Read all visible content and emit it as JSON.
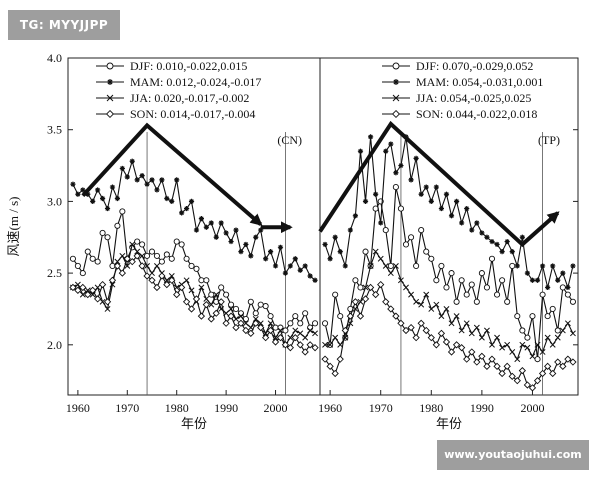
{
  "watermark_tl": "TG: MYYJJPP",
  "watermark_br": "www.youtaojuhui.com",
  "chart_data": [
    {
      "type": "line",
      "panel_label": "(CN)",
      "xlabel": "年份",
      "ylabel": "风速(m / s)",
      "xlim": [
        1958,
        2009
      ],
      "ylim": [
        1.65,
        4.0
      ],
      "xticks": [
        1960,
        1970,
        1980,
        1990,
        2000
      ],
      "yticks": [
        "4.0",
        "3.5",
        "3.0",
        "2.5",
        "2.0"
      ],
      "vlines": [
        1974,
        2002
      ],
      "legend_position": "top-right",
      "trend_arrows": [
        [
          [
            1961,
            3.04
          ],
          [
            1974,
            3.53
          ],
          [
            1997,
            2.84
          ]
        ],
        [
          [
            1997,
            2.82
          ],
          [
            2003,
            2.82
          ]
        ]
      ],
      "x": [
        1959,
        1960,
        1961,
        1962,
        1963,
        1964,
        1965,
        1966,
        1967,
        1968,
        1969,
        1970,
        1971,
        1972,
        1973,
        1974,
        1975,
        1976,
        1977,
        1978,
        1979,
        1980,
        1981,
        1982,
        1983,
        1984,
        1985,
        1986,
        1987,
        1988,
        1989,
        1990,
        1991,
        1992,
        1993,
        1994,
        1995,
        1996,
        1997,
        1998,
        1999,
        2000,
        2001,
        2002,
        2003,
        2004,
        2005,
        2006,
        2007,
        2008
      ],
      "series": [
        {
          "name": "DJF: 0.010,-0.022,0.015",
          "marker": "circle",
          "values": [
            2.6,
            2.55,
            2.5,
            2.65,
            2.6,
            2.58,
            2.78,
            2.75,
            2.55,
            2.83,
            2.93,
            2.6,
            2.68,
            2.72,
            2.7,
            2.62,
            2.65,
            2.62,
            2.58,
            2.63,
            2.6,
            2.72,
            2.7,
            2.6,
            2.55,
            2.53,
            2.45,
            2.45,
            2.35,
            2.3,
            2.4,
            2.35,
            2.28,
            2.25,
            2.22,
            2.18,
            2.3,
            2.22,
            2.28,
            2.27,
            2.2,
            2.12,
            2.12,
            2.1,
            2.15,
            2.2,
            2.15,
            2.22,
            2.12,
            2.15
          ]
        },
        {
          "name": "MAM: 0.012,-0.024,-0.017",
          "marker": "star",
          "values": [
            3.12,
            3.05,
            3.08,
            3.05,
            3.0,
            3.08,
            3.02,
            2.95,
            3.1,
            3.02,
            3.23,
            3.17,
            3.28,
            3.15,
            3.18,
            3.12,
            3.15,
            3.08,
            3.15,
            3.02,
            3.0,
            3.15,
            2.92,
            2.95,
            3.0,
            2.8,
            2.88,
            2.82,
            2.85,
            2.75,
            2.85,
            2.78,
            2.72,
            2.8,
            2.65,
            2.7,
            2.62,
            2.75,
            2.8,
            2.6,
            2.65,
            2.55,
            2.68,
            2.5,
            2.55,
            2.6,
            2.52,
            2.55,
            2.48,
            2.45
          ]
        },
        {
          "name": "JJA: 0.020,-0.017,-0.002",
          "marker": "x",
          "values": [
            2.4,
            2.42,
            2.35,
            2.38,
            2.35,
            2.4,
            2.3,
            2.25,
            2.42,
            2.58,
            2.62,
            2.55,
            2.7,
            2.65,
            2.62,
            2.55,
            2.5,
            2.55,
            2.5,
            2.45,
            2.48,
            2.4,
            2.42,
            2.45,
            2.38,
            2.3,
            2.4,
            2.32,
            2.28,
            2.35,
            2.25,
            2.22,
            2.25,
            2.18,
            2.2,
            2.15,
            2.12,
            2.18,
            2.15,
            2.08,
            2.15,
            2.05,
            2.1,
            2.0,
            2.05,
            2.1,
            2.08,
            2.05,
            2.1,
            2.08
          ]
        },
        {
          "name": "SON: 0.014,-0.017,-0.004",
          "marker": "diamond",
          "values": [
            2.4,
            2.38,
            2.4,
            2.35,
            2.38,
            2.32,
            2.42,
            2.3,
            2.45,
            2.55,
            2.5,
            2.6,
            2.58,
            2.62,
            2.55,
            2.48,
            2.45,
            2.4,
            2.48,
            2.42,
            2.45,
            2.35,
            2.4,
            2.3,
            2.25,
            2.32,
            2.2,
            2.28,
            2.18,
            2.22,
            2.3,
            2.15,
            2.2,
            2.12,
            2.15,
            2.1,
            2.08,
            2.15,
            2.12,
            2.05,
            2.1,
            2.02,
            2.05,
            2.0,
            1.98,
            2.05,
            2.0,
            1.95,
            2.0,
            1.98
          ]
        }
      ]
    },
    {
      "type": "line",
      "panel_label": "(TP)",
      "xlabel": "年份",
      "xlim": [
        1958,
        2009
      ],
      "ylim": [
        1.65,
        4.0
      ],
      "xticks": [
        1960,
        1970,
        1980,
        1990,
        2000
      ],
      "vlines": [
        1974,
        2002
      ],
      "legend_position": "top-right",
      "trend_arrows": [
        [
          [
            1958,
            2.79
          ],
          [
            1972,
            3.54
          ],
          [
            1998,
            2.7
          ],
          [
            2005,
            2.92
          ]
        ]
      ],
      "x": [
        1959,
        1960,
        1961,
        1962,
        1963,
        1964,
        1965,
        1966,
        1967,
        1968,
        1969,
        1970,
        1971,
        1972,
        1973,
        1974,
        1975,
        1976,
        1977,
        1978,
        1979,
        1980,
        1981,
        1982,
        1983,
        1984,
        1985,
        1986,
        1987,
        1988,
        1989,
        1990,
        1991,
        1992,
        1993,
        1994,
        1995,
        1996,
        1997,
        1998,
        1999,
        2000,
        2001,
        2002,
        2003,
        2004,
        2005,
        2006,
        2007,
        2008
      ],
      "series": [
        {
          "name": "DJF: 0.070,-0.029,0.052",
          "marker": "circle",
          "values": [
            2.15,
            2.0,
            2.35,
            2.2,
            2.05,
            2.25,
            2.45,
            2.4,
            2.65,
            2.55,
            2.95,
            3.0,
            2.8,
            2.55,
            3.1,
            2.95,
            2.7,
            2.75,
            2.55,
            2.8,
            2.65,
            2.6,
            2.45,
            2.55,
            2.4,
            2.5,
            2.3,
            2.45,
            2.35,
            2.42,
            2.3,
            2.5,
            2.4,
            2.6,
            2.35,
            2.45,
            2.3,
            2.55,
            2.2,
            2.1,
            2.05,
            2.2,
            1.9,
            2.35,
            2.2,
            2.25,
            2.1,
            2.4,
            2.35,
            2.3
          ]
        },
        {
          "name": "MAM: 0.054,-0.031,0.001",
          "marker": "star",
          "values": [
            2.7,
            2.6,
            2.75,
            2.65,
            2.55,
            2.8,
            2.9,
            3.35,
            3.0,
            3.45,
            3.05,
            2.85,
            3.35,
            3.4,
            3.2,
            3.25,
            3.45,
            3.15,
            3.3,
            3.05,
            3.1,
            3.0,
            3.1,
            2.95,
            3.05,
            2.9,
            3.0,
            2.85,
            2.95,
            2.8,
            2.85,
            2.78,
            2.75,
            2.72,
            2.7,
            2.65,
            2.72,
            2.65,
            2.55,
            2.75,
            2.5,
            2.45,
            2.45,
            2.55,
            2.4,
            2.55,
            2.45,
            2.5,
            2.4,
            2.55
          ]
        },
        {
          "name": "JJA: 0.054,-0.025,0.025",
          "marker": "x",
          "values": [
            2.0,
            2.0,
            2.05,
            2.0,
            2.05,
            2.15,
            2.25,
            2.3,
            2.4,
            2.55,
            2.65,
            2.6,
            2.55,
            2.5,
            2.55,
            2.45,
            2.4,
            2.35,
            2.3,
            2.28,
            2.35,
            2.25,
            2.28,
            2.2,
            2.25,
            2.15,
            2.2,
            2.1,
            2.15,
            2.08,
            2.12,
            2.05,
            2.1,
            2.0,
            2.05,
            1.98,
            2.0,
            1.95,
            1.9,
            2.0,
            1.98,
            1.92,
            2.0,
            1.95,
            2.05,
            2.0,
            2.05,
            2.1,
            2.15,
            2.08
          ]
        },
        {
          "name": "SON: 0.044,-0.022,0.018",
          "marker": "diamond",
          "values": [
            1.9,
            1.85,
            1.8,
            1.9,
            2.1,
            2.2,
            2.3,
            2.2,
            2.32,
            2.4,
            2.35,
            2.42,
            2.3,
            2.25,
            2.2,
            2.15,
            2.1,
            2.12,
            2.05,
            2.15,
            2.1,
            2.05,
            2.0,
            2.08,
            2.02,
            1.95,
            2.0,
            1.98,
            1.9,
            1.95,
            1.88,
            1.92,
            1.85,
            1.9,
            1.85,
            1.8,
            1.85,
            1.78,
            1.75,
            1.82,
            1.72,
            1.7,
            1.75,
            1.8,
            1.85,
            1.8,
            1.88,
            1.85,
            1.9,
            1.88
          ]
        }
      ]
    }
  ]
}
